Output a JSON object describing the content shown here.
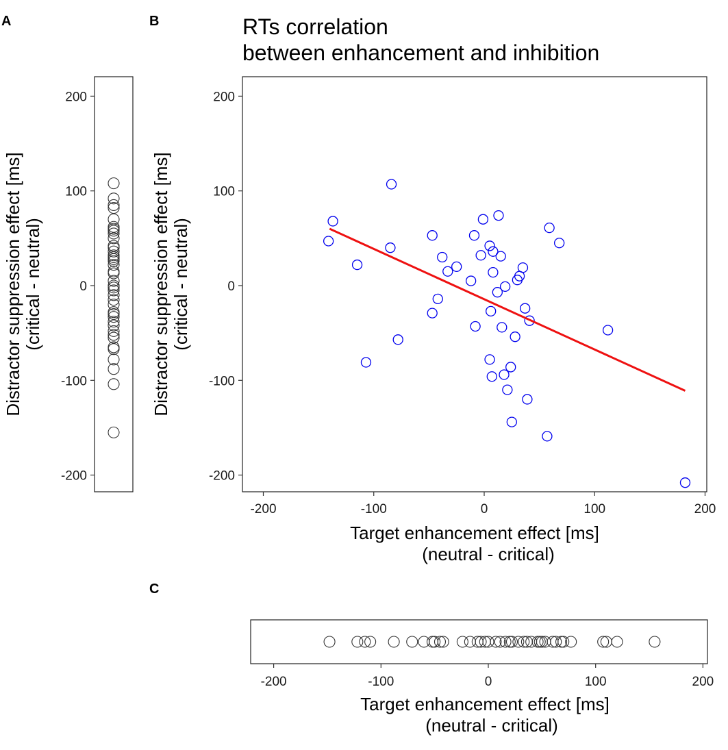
{
  "panels": {
    "a": {
      "letter": "A"
    },
    "b": {
      "letter": "B"
    },
    "c": {
      "letter": "C"
    }
  },
  "chart_data": [
    {
      "panel": "A",
      "type": "scatter",
      "orientation": "vertical strip",
      "ylabel": "Distractor suppression effect [ms]",
      "ylabel2": "(critical - neutral)",
      "ylim": [
        -220,
        220
      ],
      "yticks": [
        -200,
        -100,
        0,
        100,
        200
      ],
      "y_tick_labels": [
        "-200",
        "-100",
        "0",
        "100",
        "200"
      ],
      "marker_color": "#333333",
      "values": [
        108,
        92,
        85,
        82,
        70,
        62,
        60,
        58,
        55,
        50,
        42,
        40,
        36,
        32,
        30,
        28,
        26,
        22,
        15,
        13,
        5,
        0,
        -2,
        -5,
        -10,
        -15,
        -20,
        -28,
        -30,
        -33,
        -38,
        -42,
        -48,
        -52,
        -55,
        -65,
        -67,
        -78,
        -88,
        -104,
        -155
      ]
    },
    {
      "panel": "B",
      "type": "scatter",
      "title": "RTs correlation",
      "title2": "between enhancement and inhibition",
      "xlabel": "Target enhancement effect [ms]",
      "xlabel2": "(neutral - critical)",
      "ylabel": "Distractor suppression effect [ms]",
      "ylabel2": "(critical - neutral)",
      "xlim": [
        -220,
        220
      ],
      "ylim": [
        -220,
        220
      ],
      "xticks": [
        -200,
        -100,
        0,
        100,
        200
      ],
      "yticks": [
        -200,
        -100,
        0,
        100,
        200
      ],
      "x_tick_labels": [
        "-200",
        "-100",
        "0",
        "100",
        "200"
      ],
      "y_tick_labels": [
        "-200",
        "-100",
        "0",
        "100",
        "200"
      ],
      "marker_color": "#0000ee",
      "line_color": "#ee1111",
      "regression_line": {
        "x": [
          -140,
          182
        ],
        "y": [
          60,
          -111
        ]
      },
      "points": [
        {
          "x": -141,
          "y": 47
        },
        {
          "x": -137,
          "y": 68
        },
        {
          "x": -115,
          "y": 22
        },
        {
          "x": -107,
          "y": -81
        },
        {
          "x": -84,
          "y": 107
        },
        {
          "x": -85,
          "y": 40
        },
        {
          "x": -78,
          "y": -57
        },
        {
          "x": -47,
          "y": 53
        },
        {
          "x": -47,
          "y": -29
        },
        {
          "x": -42,
          "y": -14
        },
        {
          "x": -38,
          "y": 30
        },
        {
          "x": -33,
          "y": 15
        },
        {
          "x": -25,
          "y": 20
        },
        {
          "x": -12,
          "y": 5
        },
        {
          "x": -9,
          "y": 53
        },
        {
          "x": -8,
          "y": -43
        },
        {
          "x": -3,
          "y": 32
        },
        {
          "x": -1,
          "y": 70
        },
        {
          "x": 5,
          "y": 42
        },
        {
          "x": 5,
          "y": -78
        },
        {
          "x": 6,
          "y": -27
        },
        {
          "x": 7,
          "y": -96
        },
        {
          "x": 8,
          "y": 36
        },
        {
          "x": 8,
          "y": 14
        },
        {
          "x": 12,
          "y": -7
        },
        {
          "x": 13,
          "y": 74
        },
        {
          "x": 15,
          "y": 31
        },
        {
          "x": 16,
          "y": -44
        },
        {
          "x": 18,
          "y": -94
        },
        {
          "x": 19,
          "y": -1
        },
        {
          "x": 21,
          "y": -110
        },
        {
          "x": 24,
          "y": -86
        },
        {
          "x": 25,
          "y": -144
        },
        {
          "x": 28,
          "y": -54
        },
        {
          "x": 30,
          "y": 6
        },
        {
          "x": 32,
          "y": 10
        },
        {
          "x": 35,
          "y": 19
        },
        {
          "x": 37,
          "y": -24
        },
        {
          "x": 39,
          "y": -120
        },
        {
          "x": 41,
          "y": -37
        },
        {
          "x": 57,
          "y": -159
        },
        {
          "x": 59,
          "y": 61
        },
        {
          "x": 68,
          "y": 45
        },
        {
          "x": 112,
          "y": -47
        },
        {
          "x": 182,
          "y": -208
        }
      ]
    },
    {
      "panel": "C",
      "type": "scatter",
      "orientation": "horizontal strip",
      "xlabel": "Target enhancement effect [ms]",
      "xlabel2": "(neutral - critical)",
      "xlim": [
        -220,
        220
      ],
      "xticks": [
        -200,
        -100,
        0,
        100,
        200
      ],
      "x_tick_labels": [
        "-200",
        "-100",
        "0",
        "100",
        "200"
      ],
      "marker_color": "#333333",
      "values": [
        -148,
        -122,
        -115,
        -110,
        -88,
        -71,
        -60,
        -52,
        -50,
        -45,
        -42,
        -24,
        -17,
        -10,
        -7,
        -3,
        0,
        7,
        11,
        16,
        20,
        22,
        28,
        33,
        36,
        40,
        46,
        48,
        50,
        53,
        60,
        63,
        68,
        70,
        77,
        107,
        110,
        120,
        155
      ]
    }
  ]
}
